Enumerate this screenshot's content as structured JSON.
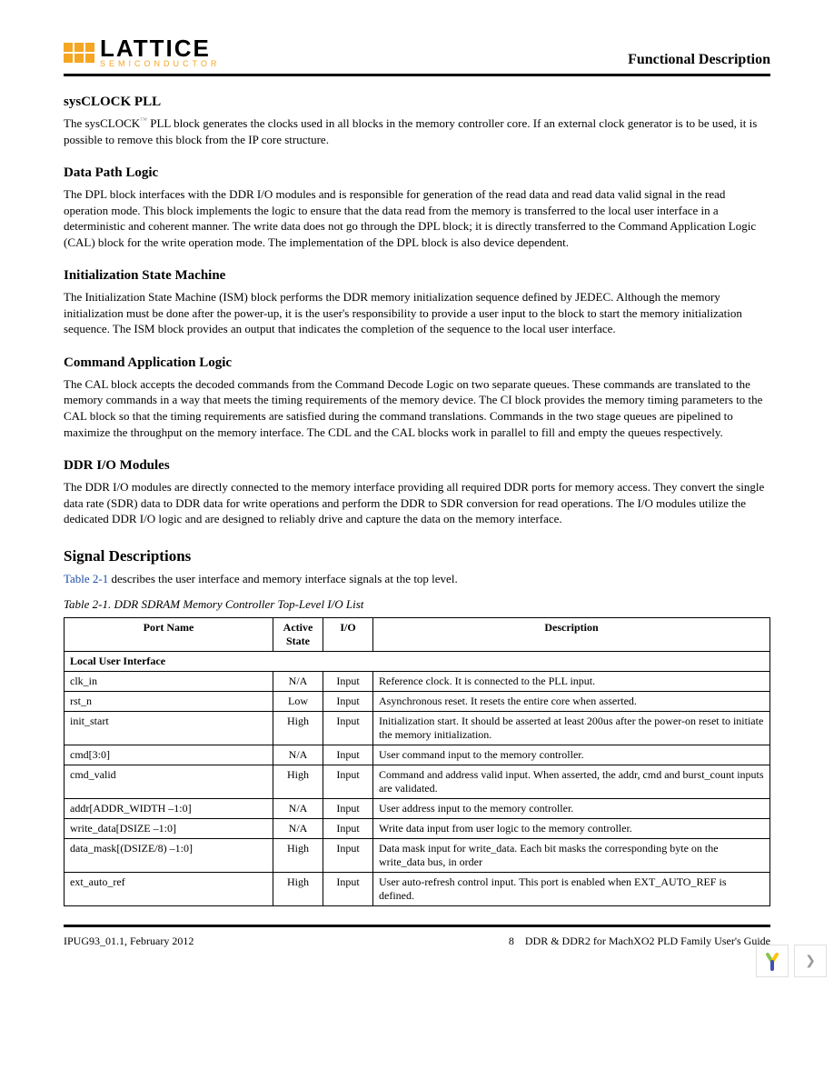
{
  "header": {
    "logo_main": "LATTICE",
    "logo_sub": "SEMICONDUCTOR",
    "title": "Functional Description"
  },
  "sections": {
    "sysclock": {
      "heading": "sysCLOCK PLL",
      "body": "The sysCLOCK™ PLL block generates the clocks used in all blocks in the memory controller core. If an external clock generator is to be used, it is possible to remove this block from the IP core structure."
    },
    "dpl": {
      "heading": "Data Path Logic",
      "body": "The DPL block interfaces with the DDR I/O modules and is responsible for generation of the read data and read data valid signal in the read operation mode. This block implements the logic to ensure that the data read from the memory is transferred to the local user interface in a deterministic and coherent manner. The write data does not go through the DPL block; it is directly transferred to the Command Application Logic (CAL) block for the write operation mode. The implementation of the DPL block is also device dependent."
    },
    "ism": {
      "heading": "Initialization State Machine",
      "body": "The Initialization State Machine (ISM) block performs the DDR memory initialization sequence defined by JEDEC. Although the memory initialization must be done after the power-up, it is the user's responsibility to provide a user input to the block to start the memory initialization sequence. The ISM block provides an output that indicates the completion of the sequence to the local user interface."
    },
    "cal": {
      "heading": "Command Application Logic",
      "body": "The CAL block accepts the decoded commands from the Command Decode Logic on two separate queues. These commands are translated to the memory commands in a way that meets the timing requirements of the memory device. The CI block provides the memory timing parameters to the CAL block so that the timing requirements are satisfied during the command translations. Commands in the two stage queues are pipelined to maximize the throughput on the memory interface. The CDL and the CAL blocks work in parallel to fill and empty the queues respectively."
    },
    "ddrio": {
      "heading": "DDR I/O Modules",
      "body": "The DDR I/O modules are directly connected to the memory interface providing all required DDR ports for memory access. They convert the single data rate (SDR) data to DDR data for write operations and perform the DDR to SDR conversion for read operations. The I/O modules utilize the dedicated DDR I/O logic and are designed to reliably drive and capture the data on the memory interface."
    },
    "sigdesc": {
      "heading": "Signal Descriptions",
      "intro_ref": "Table 2-1",
      "intro_rest": " describes the user interface and memory interface signals at the top level.",
      "table_caption": "Table 2-1. DDR SDRAM Memory Controller Top-Level I/O List"
    }
  },
  "table": {
    "headers": {
      "port": "Port Name",
      "active": "Active State",
      "io": "I/O",
      "desc": "Description"
    },
    "section_label": "Local User Interface",
    "rows": [
      {
        "port": "clk_in",
        "active": "N/A",
        "io": "Input",
        "desc": "Reference clock. It is connected to the PLL input."
      },
      {
        "port": "rst_n",
        "active": "Low",
        "io": "Input",
        "desc": "Asynchronous reset. It resets the entire core when asserted."
      },
      {
        "port": "init_start",
        "active": "High",
        "io": "Input",
        "desc": "Initialization start. It should be asserted at least 200us after the power-on reset to initiate the memory initialization."
      },
      {
        "port": "cmd[3:0]",
        "active": "N/A",
        "io": "Input",
        "desc": "User command input to the memory controller."
      },
      {
        "port": "cmd_valid",
        "active": "High",
        "io": "Input",
        "desc": "Command and address valid input. When asserted, the addr, cmd and burst_count inputs are validated."
      },
      {
        "port": "addr[ADDR_WIDTH –1:0]",
        "active": "N/A",
        "io": "Input",
        "desc": "User address input to the memory controller."
      },
      {
        "port": "write_data[DSIZE –1:0]",
        "active": "N/A",
        "io": "Input",
        "desc": "Write data input from user logic to the memory controller."
      },
      {
        "port": "data_mask[(DSIZE/8) –1:0]",
        "active": "High",
        "io": "Input",
        "desc": "Data mask input for write_data. Each bit masks the corresponding byte on the write_data bus, in order"
      },
      {
        "port": "ext_auto_ref",
        "active": "High",
        "io": "Input",
        "desc": "User auto-refresh control input. This port is enabled when EXT_AUTO_REF is defined."
      }
    ]
  },
  "footer": {
    "left": "IPUG93_01.1, February 2012",
    "page": "8",
    "right": "DDR & DDR2 for MachXO2 PLD Family User's Guide"
  },
  "colors": {
    "accent": "#f5a623",
    "link": "#1a4ba8"
  }
}
